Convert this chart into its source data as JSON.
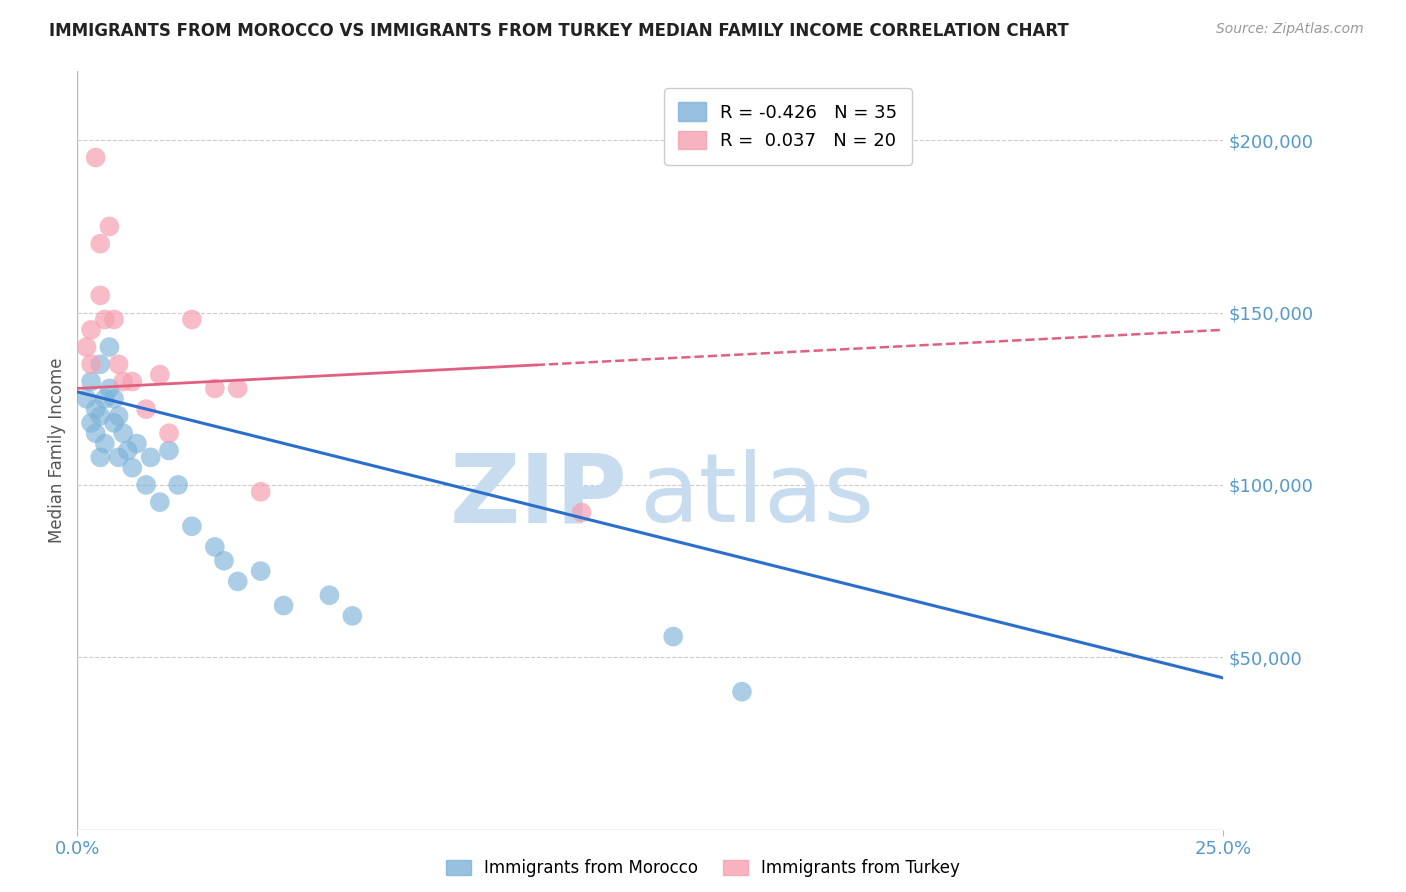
{
  "title": "IMMIGRANTS FROM MOROCCO VS IMMIGRANTS FROM TURKEY MEDIAN FAMILY INCOME CORRELATION CHART",
  "source": "Source: ZipAtlas.com",
  "ylabel": "Median Family Income",
  "xlim": [
    0.0,
    0.25
  ],
  "ylim": [
    0,
    220000
  ],
  "yticks": [
    50000,
    100000,
    150000,
    200000
  ],
  "xticks": [
    0.0,
    0.25
  ],
  "xtick_labels": [
    "0.0%",
    "25.0%"
  ],
  "ytick_labels": [
    "$50,000",
    "$100,000",
    "$150,000",
    "$200,000"
  ],
  "morocco_color": "#7EB2D8",
  "turkey_color": "#F5A0B0",
  "morocco_line_color": "#2B6FCC",
  "turkey_line_color": "#E06080",
  "legend_R_morocco": "-0.426",
  "legend_N_morocco": "35",
  "legend_R_turkey": "0.037",
  "legend_N_turkey": "20",
  "watermark_zip": "ZIP",
  "watermark_atlas": "atlas",
  "watermark_color": "#C8DCF0",
  "background_color": "#ffffff",
  "grid_color": "#CCCCCC",
  "axis_label_color": "#5599CC",
  "morocco_x": [
    0.002,
    0.003,
    0.003,
    0.004,
    0.004,
    0.005,
    0.005,
    0.005,
    0.006,
    0.006,
    0.007,
    0.007,
    0.008,
    0.008,
    0.009,
    0.009,
    0.01,
    0.011,
    0.012,
    0.013,
    0.015,
    0.016,
    0.018,
    0.02,
    0.022,
    0.025,
    0.03,
    0.032,
    0.035,
    0.04,
    0.045,
    0.055,
    0.06,
    0.13,
    0.145
  ],
  "morocco_y": [
    125000,
    130000,
    118000,
    122000,
    115000,
    135000,
    120000,
    108000,
    125000,
    112000,
    140000,
    128000,
    118000,
    125000,
    108000,
    120000,
    115000,
    110000,
    105000,
    112000,
    100000,
    108000,
    95000,
    110000,
    100000,
    88000,
    82000,
    78000,
    72000,
    75000,
    65000,
    68000,
    62000,
    56000,
    40000
  ],
  "turkey_x": [
    0.002,
    0.003,
    0.003,
    0.004,
    0.005,
    0.005,
    0.006,
    0.007,
    0.008,
    0.009,
    0.01,
    0.012,
    0.015,
    0.018,
    0.02,
    0.025,
    0.03,
    0.035,
    0.04,
    0.11
  ],
  "turkey_y": [
    140000,
    135000,
    145000,
    195000,
    170000,
    155000,
    148000,
    175000,
    148000,
    135000,
    130000,
    130000,
    122000,
    132000,
    115000,
    148000,
    128000,
    128000,
    98000,
    92000
  ],
  "blue_line_x0": 0.0,
  "blue_line_y0": 127000,
  "blue_line_x1": 0.25,
  "blue_line_y1": 44000,
  "pink_line_x0": 0.0,
  "pink_line_y0": 128000,
  "pink_line_x1": 0.25,
  "pink_line_y1": 145000
}
